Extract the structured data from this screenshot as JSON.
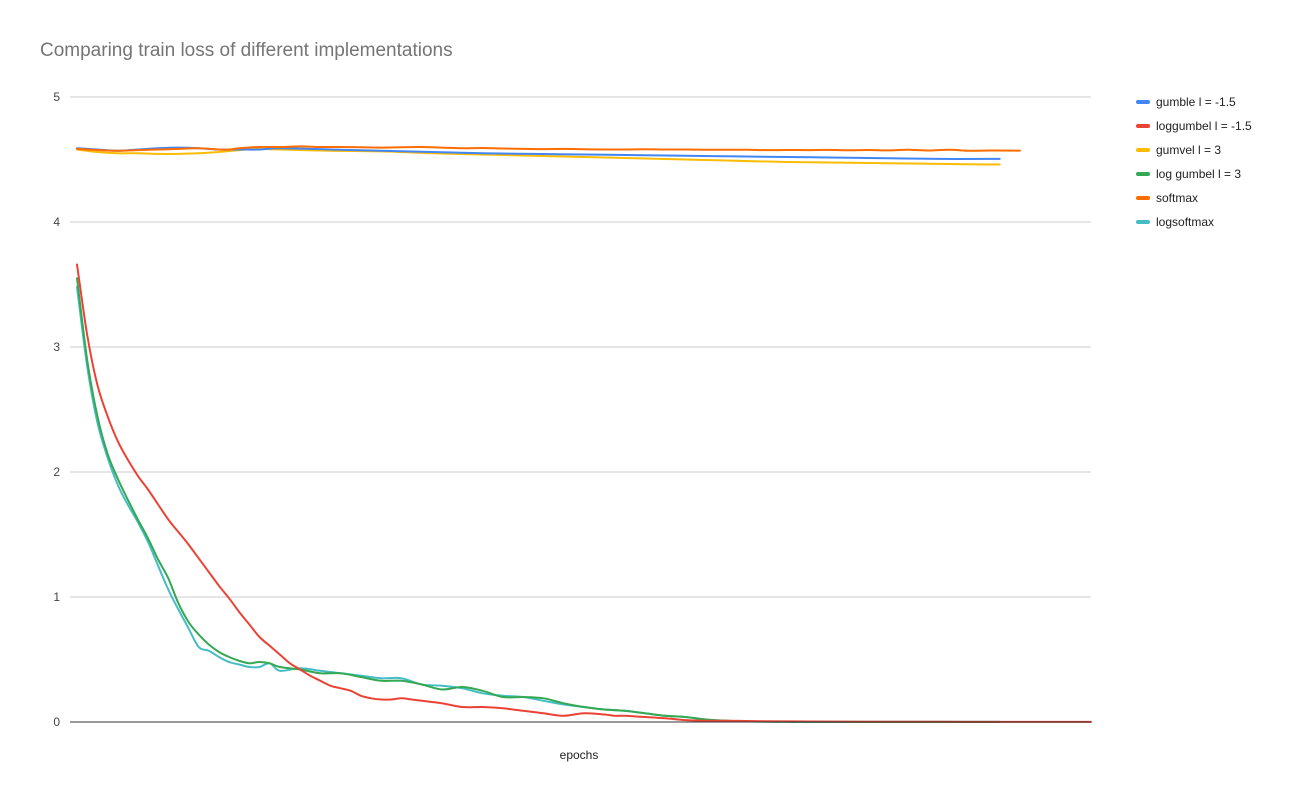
{
  "title": "Comparing train loss of different implementations",
  "chart_data": {
    "type": "line",
    "title": "Comparing train loss of different implementations",
    "xlabel": "epochs",
    "ylabel": "",
    "ylim": [
      0,
      5
    ],
    "xlim": [
      0,
      100
    ],
    "yticks": [
      "0",
      "1",
      "2",
      "3",
      "4",
      "5"
    ],
    "grid": true,
    "legend_position": "right",
    "series": [
      {
        "name": "gumble l = -1.5",
        "color": "#4285F4",
        "x": [
          0,
          2,
          4,
          6,
          8,
          10,
          12,
          14,
          16,
          18,
          20,
          25,
          30,
          35,
          40,
          45,
          50,
          55,
          60,
          65,
          70,
          75,
          80,
          85,
          90,
          91
        ],
        "y": [
          4.59,
          4.58,
          4.57,
          4.58,
          4.59,
          4.595,
          4.59,
          4.58,
          4.58,
          4.58,
          4.59,
          4.58,
          4.57,
          4.56,
          4.55,
          4.545,
          4.54,
          4.535,
          4.53,
          4.525,
          4.52,
          4.515,
          4.51,
          4.505,
          4.505,
          4.505
        ]
      },
      {
        "name": "loggumbel l = -1.5",
        "color": "#EA4335",
        "x": [
          0,
          1,
          2,
          3,
          4,
          5,
          6,
          7,
          8,
          9,
          10,
          11,
          12,
          13,
          14,
          15,
          16,
          17,
          18,
          19,
          20,
          21,
          22,
          23,
          24,
          25,
          26,
          27,
          28,
          29,
          30,
          31,
          32,
          33,
          34,
          35,
          36,
          38,
          40,
          42,
          44,
          46,
          48,
          50,
          52,
          53,
          54,
          55,
          56,
          58,
          60,
          62,
          64,
          66,
          68,
          70,
          72,
          75,
          80,
          85,
          90,
          95,
          100
        ],
        "y": [
          3.66,
          3.1,
          2.7,
          2.45,
          2.25,
          2.1,
          1.97,
          1.86,
          1.74,
          1.62,
          1.52,
          1.42,
          1.31,
          1.2,
          1.09,
          0.99,
          0.88,
          0.78,
          0.68,
          0.61,
          0.54,
          0.47,
          0.42,
          0.37,
          0.33,
          0.29,
          0.27,
          0.25,
          0.21,
          0.19,
          0.18,
          0.18,
          0.19,
          0.18,
          0.17,
          0.16,
          0.15,
          0.12,
          0.12,
          0.11,
          0.09,
          0.07,
          0.05,
          0.07,
          0.06,
          0.05,
          0.05,
          0.045,
          0.04,
          0.03,
          0.015,
          0.01,
          0.01,
          0.008,
          0.006,
          0.005,
          0.004,
          0.003,
          0.002,
          0.0015,
          0.001,
          0.001,
          0.001
        ]
      },
      {
        "name": "gumvel l = 3",
        "color": "#FBBC04",
        "x": [
          0,
          2,
          4,
          6,
          8,
          10,
          12,
          14,
          16,
          18,
          20,
          25,
          30,
          35,
          40,
          45,
          50,
          55,
          60,
          65,
          70,
          75,
          80,
          85,
          90,
          91
        ],
        "y": [
          4.58,
          4.56,
          4.55,
          4.55,
          4.545,
          4.545,
          4.55,
          4.56,
          4.575,
          4.585,
          4.58,
          4.57,
          4.565,
          4.55,
          4.54,
          4.53,
          4.52,
          4.51,
          4.5,
          4.49,
          4.48,
          4.475,
          4.47,
          4.465,
          4.46,
          4.46
        ]
      },
      {
        "name": "log gumbel l = 3",
        "color": "#34A853",
        "x": [
          0,
          1,
          2,
          3,
          4,
          5,
          6,
          7,
          8,
          9,
          10,
          11,
          12,
          13,
          14,
          15,
          16,
          17,
          18,
          19,
          20,
          22,
          24,
          26,
          28,
          30,
          32,
          34,
          36,
          38,
          40,
          42,
          44,
          46,
          48,
          50,
          52,
          54,
          56,
          58,
          60,
          62,
          64,
          66,
          68,
          70,
          72,
          75,
          80,
          85,
          90,
          91
        ],
        "y": [
          3.55,
          2.9,
          2.45,
          2.15,
          1.95,
          1.78,
          1.62,
          1.47,
          1.3,
          1.15,
          0.95,
          0.8,
          0.7,
          0.62,
          0.56,
          0.52,
          0.49,
          0.47,
          0.48,
          0.47,
          0.44,
          0.42,
          0.39,
          0.39,
          0.36,
          0.33,
          0.33,
          0.3,
          0.26,
          0.28,
          0.25,
          0.2,
          0.2,
          0.19,
          0.15,
          0.12,
          0.1,
          0.09,
          0.07,
          0.05,
          0.04,
          0.02,
          0.01,
          0.005,
          0.003,
          0.002,
          0.001,
          0.001,
          0.001,
          0.001,
          0.001,
          0.001
        ]
      },
      {
        "name": "softmax",
        "color": "#FF6D01",
        "x": [
          0,
          2,
          4,
          6,
          8,
          10,
          12,
          14,
          15,
          16,
          18,
          20,
          22,
          24,
          26,
          28,
          30,
          32,
          34,
          36,
          38,
          40,
          42,
          44,
          46,
          48,
          50,
          52,
          54,
          56,
          58,
          60,
          62,
          64,
          66,
          68,
          70,
          72,
          74,
          76,
          78,
          80,
          82,
          84,
          86,
          88,
          90,
          92,
          93
        ],
        "y": [
          4.585,
          4.575,
          4.57,
          4.575,
          4.58,
          4.585,
          4.59,
          4.58,
          4.58,
          4.59,
          4.6,
          4.6,
          4.605,
          4.6,
          4.6,
          4.598,
          4.595,
          4.598,
          4.6,
          4.595,
          4.59,
          4.592,
          4.588,
          4.585,
          4.583,
          4.585,
          4.582,
          4.58,
          4.58,
          4.582,
          4.58,
          4.58,
          4.578,
          4.578,
          4.578,
          4.575,
          4.576,
          4.575,
          4.577,
          4.574,
          4.576,
          4.573,
          4.578,
          4.572,
          4.578,
          4.57,
          4.572,
          4.571,
          4.571
        ]
      },
      {
        "name": "logsoftmax",
        "color": "#46BDC6",
        "x": [
          0,
          1,
          2,
          3,
          4,
          5,
          6,
          7,
          8,
          9,
          10,
          11,
          12,
          13,
          14,
          15,
          16,
          17,
          18,
          19,
          20,
          22,
          24,
          26,
          28,
          30,
          32,
          34,
          36,
          38,
          40,
          42,
          44,
          46,
          48,
          50,
          52,
          54,
          56,
          58,
          60,
          62,
          64,
          66,
          68,
          70,
          72,
          75,
          80,
          85,
          90,
          91
        ],
        "y": [
          3.48,
          2.85,
          2.4,
          2.12,
          1.9,
          1.74,
          1.6,
          1.44,
          1.25,
          1.06,
          0.9,
          0.75,
          0.6,
          0.57,
          0.52,
          0.48,
          0.46,
          0.44,
          0.44,
          0.47,
          0.41,
          0.43,
          0.41,
          0.39,
          0.37,
          0.35,
          0.35,
          0.3,
          0.29,
          0.27,
          0.23,
          0.21,
          0.2,
          0.17,
          0.14,
          0.12,
          0.1,
          0.09,
          0.07,
          0.05,
          0.04,
          0.02,
          0.01,
          0.005,
          0.003,
          0.002,
          0.001,
          0.001,
          0.001,
          0.001,
          0.001,
          0.001
        ]
      }
    ]
  }
}
